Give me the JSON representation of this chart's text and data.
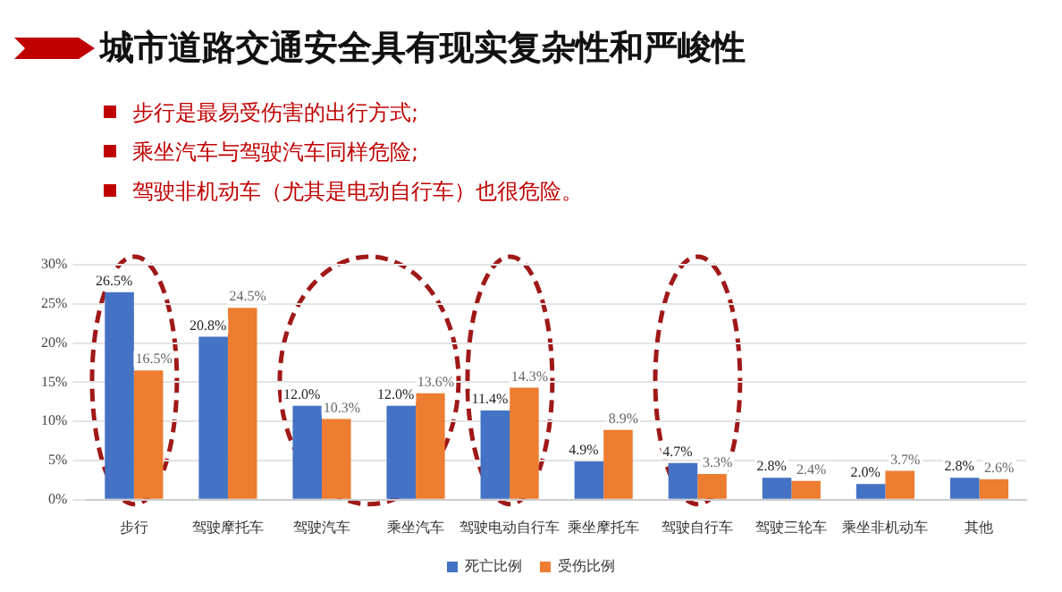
{
  "chart_data": {
    "type": "bar",
    "title": "城市道路交通安全具有现实复杂性和严峻性",
    "annotations": [
      "步行是最易受伤害的出行方式;",
      "乘坐汽车与驾驶汽车同样危险;",
      "驾驶非机动车（尤其是电动自行车）也很危险。"
    ],
    "categories": [
      "步行",
      "驾驶摩托车",
      "驾驶汽车",
      "乘坐汽车",
      "驾驶电动自行车",
      "乘坐摩托车",
      "驾驶自行车",
      "驾驶三轮车",
      "乘坐非机动车",
      "其他"
    ],
    "series": [
      {
        "name": "死亡比例",
        "color": "#4472c4",
        "values": [
          26.5,
          20.8,
          12.0,
          12.0,
          11.4,
          4.9,
          4.7,
          2.8,
          2.0,
          2.8
        ],
        "value_labels": [
          "26.5%",
          "20.8%",
          "12.0%",
          "12.0%",
          "11.4%",
          "4.9%",
          "4.7%",
          "2.8%",
          "2.0%",
          "2.8%"
        ]
      },
      {
        "name": "受伤比例",
        "color": "#ed7d31",
        "values": [
          16.5,
          24.5,
          10.3,
          13.6,
          14.3,
          8.9,
          3.3,
          2.4,
          3.7,
          2.6
        ],
        "value_labels": [
          "16.5%",
          "24.5%",
          "10.3%",
          "13.6%",
          "14.3%",
          "8.9%",
          "3.3%",
          "2.4%",
          "3.7%",
          "2.6%"
        ]
      }
    ],
    "ylim": [
      0,
      30
    ],
    "yticks": [
      {
        "value": 0,
        "label": "0%"
      },
      {
        "value": 5,
        "label": "5%"
      },
      {
        "value": 10,
        "label": "10%"
      },
      {
        "value": 15,
        "label": "15%"
      },
      {
        "value": 20,
        "label": "20%"
      },
      {
        "value": 25,
        "label": "25%"
      },
      {
        "value": 30,
        "label": "30%"
      }
    ],
    "grid": "y",
    "legend": "bottom"
  }
}
